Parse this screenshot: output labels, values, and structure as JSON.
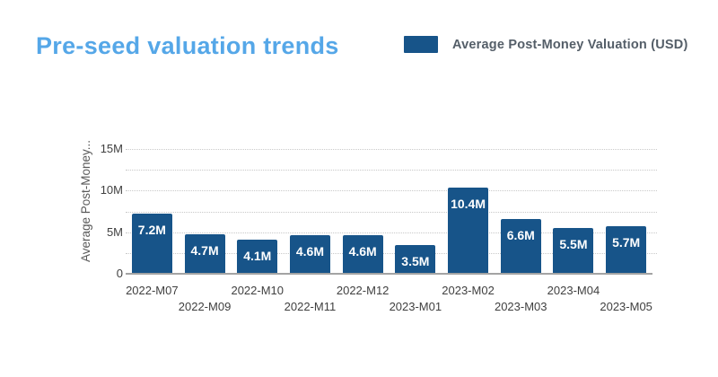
{
  "header": {
    "title": "Pre-seed valuation trends"
  },
  "legend": {
    "label": "Average Post-Money Valuation (USD)",
    "swatch_color": "#175489"
  },
  "colors": {
    "background": "#ffffff",
    "title": "#55a7e8",
    "bar": "#175489",
    "bar_label": "#ffffff",
    "axis_text": "#404040",
    "y_axis_title": "#595959",
    "legend_text": "#545e68",
    "gridline": "#c9c9c9",
    "axis_line": "#a3a3a3"
  },
  "chart_data": {
    "type": "bar",
    "title": "Pre-seed valuation trends",
    "series_name": "Average Post-Money Valuation (USD)",
    "xlabel": "",
    "ylabel": "Average Post-Money...",
    "unit": "M (millions USD)",
    "categories": [
      "2022-M07",
      "2022-M09",
      "2022-M10",
      "2022-M11",
      "2022-M12",
      "2023-M01",
      "2023-M02",
      "2023-M03",
      "2023-M04",
      "2023-M05"
    ],
    "values": [
      7.2,
      4.7,
      4.1,
      4.6,
      4.6,
      3.5,
      10.4,
      6.6,
      5.5,
      5.7
    ],
    "value_labels": [
      "7.2M",
      "4.7M",
      "4.1M",
      "4.6M",
      "4.6M",
      "3.5M",
      "10.4M",
      "6.6M",
      "5.5M",
      "5.7M"
    ],
    "ylim": [
      0,
      15
    ],
    "yticks": [
      {
        "value": 0,
        "label": "0"
      },
      {
        "value": 5,
        "label": "5M"
      },
      {
        "value": 10,
        "label": "10M"
      },
      {
        "value": 15,
        "label": "15M"
      }
    ],
    "minor_gridline_step": 2.5,
    "grid_style": "dotted horizontal",
    "legend_position": "top-right",
    "x_label_layout": "staggered-two-rows"
  }
}
